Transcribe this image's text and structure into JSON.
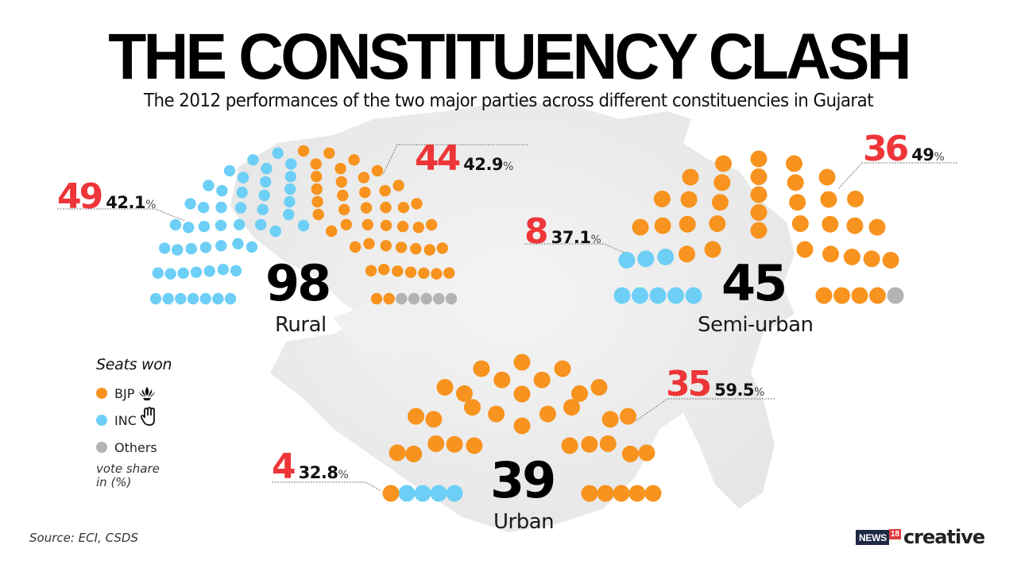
{
  "header": {
    "title": "THE CONSTITUENCY CLASH",
    "subtitle": "The 2012 performances of the two major parties across different constituencies in Gujarat"
  },
  "colors": {
    "bjp": "#f7931e",
    "inc": "#6dcff6",
    "others": "#b3b3b3",
    "seats_highlight": "#ee3538",
    "map": "#ebebeb"
  },
  "legend": {
    "title": "Seats won",
    "items": [
      {
        "label": "BJP",
        "color": "#f7931e",
        "icon": "lotus-icon"
      },
      {
        "label": "INC",
        "color": "#6dcff6",
        "icon": "hand-icon"
      },
      {
        "label": "Others",
        "color": "#b3b3b3",
        "icon": ""
      }
    ],
    "note_line1": "vote share",
    "note_line2": "in (%)"
  },
  "source": "Source: ECI, CSDS",
  "brand": {
    "news": "NEWS",
    "num": "18",
    "creative": "creative"
  },
  "charts": {
    "rural": {
      "label": "Rural",
      "total": "98",
      "inc": {
        "seats": "49",
        "share": "42.1",
        "pct": "%"
      },
      "bjp": {
        "seats": "44",
        "share": "42.9",
        "pct": "%"
      }
    },
    "semi_urban": {
      "label": "Semi-urban",
      "total": "45",
      "inc": {
        "seats": "8",
        "share": "37.1",
        "pct": "%"
      },
      "bjp": {
        "seats": "36",
        "share": "49",
        "pct": "%"
      }
    },
    "urban": {
      "label": "Urban",
      "total": "39",
      "inc": {
        "seats": "4",
        "share": "32.8",
        "pct": "%"
      },
      "bjp": {
        "seats": "35",
        "share": "59.5",
        "pct": "%"
      }
    }
  },
  "chart_data": {
    "type": "parliament",
    "title": "THE CONSTITUENCY CLASH",
    "subtitle": "The 2012 performances of the two major parties across different constituencies in Gujarat",
    "categories": [
      "Rural",
      "Semi-urban",
      "Urban"
    ],
    "totals": [
      98,
      45,
      39
    ],
    "series": [
      {
        "name": "BJP",
        "color": "#f7931e",
        "seats": [
          44,
          36,
          35
        ],
        "vote_share_pct": [
          42.9,
          49,
          59.5
        ]
      },
      {
        "name": "INC",
        "color": "#6dcff6",
        "seats": [
          49,
          8,
          4
        ],
        "vote_share_pct": [
          42.1,
          37.1,
          32.8
        ]
      },
      {
        "name": "Others",
        "color": "#b3b3b3",
        "seats": [
          5,
          1,
          0
        ]
      }
    ],
    "legend_title": "Seats won",
    "legend_note": "vote share in (%)",
    "source": "Source: ECI, CSDS",
    "legend_position": "left"
  }
}
